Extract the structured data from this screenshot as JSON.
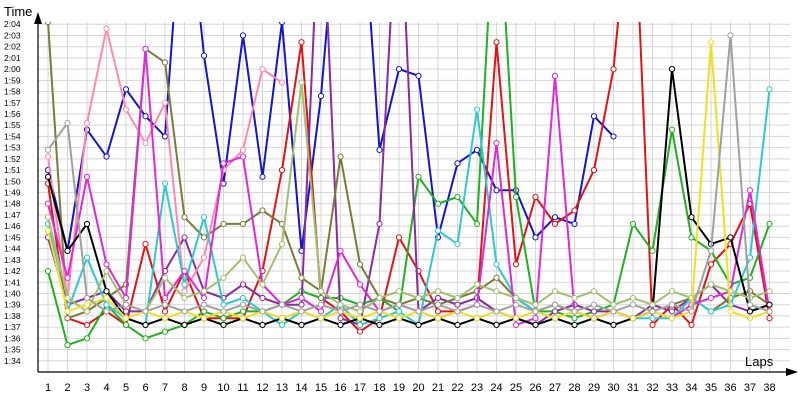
{
  "chart_data": {
    "type": "line",
    "ylabel": "Time",
    "xlabel": "Laps",
    "x": [
      1,
      2,
      3,
      4,
      5,
      6,
      7,
      8,
      9,
      10,
      11,
      12,
      13,
      14,
      15,
      16,
      17,
      18,
      19,
      20,
      21,
      22,
      23,
      24,
      25,
      26,
      27,
      28,
      29,
      30,
      31,
      32,
      33,
      34,
      35,
      36,
      37,
      38
    ],
    "ylim": [
      1.55,
      2.07
    ],
    "y_ticks": [
      {
        "v": 1.5667,
        "label": "1:34"
      },
      {
        "v": 1.5833,
        "label": "1:35"
      },
      {
        "v": 1.6,
        "label": "1:36"
      },
      {
        "v": 1.6167,
        "label": "1:37"
      },
      {
        "v": 1.6333,
        "label": "1:38"
      },
      {
        "v": 1.65,
        "label": "1:39"
      },
      {
        "v": 1.6667,
        "label": "1:40"
      },
      {
        "v": 1.6833,
        "label": "1:41"
      },
      {
        "v": 1.7,
        "label": "1:42"
      },
      {
        "v": 1.7167,
        "label": "1:43"
      },
      {
        "v": 1.7333,
        "label": "1:44"
      },
      {
        "v": 1.75,
        "label": "1:45"
      },
      {
        "v": 1.7667,
        "label": "1:46"
      },
      {
        "v": 1.7833,
        "label": "1:47"
      },
      {
        "v": 1.8,
        "label": "1:48"
      },
      {
        "v": 1.8167,
        "label": "1:49"
      },
      {
        "v": 1.8333,
        "label": "1:50"
      },
      {
        "v": 1.85,
        "label": "1:51"
      },
      {
        "v": 1.8667,
        "label": "1:52"
      },
      {
        "v": 1.8833,
        "label": "1:53"
      },
      {
        "v": 1.9,
        "label": "1:54"
      },
      {
        "v": 1.9167,
        "label": "1:55"
      },
      {
        "v": 1.9333,
        "label": "1:56"
      },
      {
        "v": 1.95,
        "label": "1:57"
      },
      {
        "v": 1.9667,
        "label": "1:58"
      },
      {
        "v": 1.9833,
        "label": "1:59"
      },
      {
        "v": 2.0,
        "label": "2:00"
      },
      {
        "v": 2.0167,
        "label": "2:01"
      },
      {
        "v": 2.0333,
        "label": "2:02"
      },
      {
        "v": 2.05,
        "label": "2:03"
      },
      {
        "v": 2.0667,
        "label": "2:04"
      }
    ],
    "grid": true,
    "series": [
      {
        "color": "#1414c8",
        "values": [
          1.85,
          1.73,
          1.91,
          1.87,
          1.97,
          1.93,
          1.9,
          2.3,
          2.02,
          1.83,
          2.05,
          1.84,
          2.07,
          1.73,
          1.96,
          2.3,
          2.3,
          1.88,
          2.0,
          1.99,
          1.75,
          1.86,
          1.88,
          1.82,
          1.82,
          1.75,
          1.78,
          1.77,
          1.93,
          1.9,
          null,
          null,
          null,
          null,
          null,
          null,
          null,
          null
        ]
      },
      {
        "color": "#e01414",
        "values": [
          1.83,
          1.63,
          1.62,
          1.64,
          1.62,
          1.74,
          1.64,
          1.7,
          1.63,
          1.63,
          1.63,
          1.7,
          1.85,
          2.04,
          1.66,
          1.64,
          1.61,
          1.63,
          1.75,
          1.7,
          1.64,
          1.64,
          1.65,
          2.04,
          1.71,
          1.81,
          1.77,
          1.79,
          1.85,
          2.0,
          2.3,
          1.62,
          1.65,
          1.62,
          1.71,
          1.74,
          1.8,
          1.63
        ]
      },
      {
        "color": "#20b020",
        "values": [
          1.7,
          1.59,
          1.6,
          1.65,
          1.62,
          1.6,
          1.61,
          1.62,
          1.64,
          1.63,
          1.64,
          1.64,
          1.65,
          1.67,
          1.66,
          1.66,
          1.65,
          1.66,
          1.64,
          1.84,
          1.8,
          1.81,
          1.77,
          2.3,
          1.81,
          1.64,
          1.64,
          1.63,
          1.64,
          1.65,
          1.77,
          1.73,
          1.91,
          1.75,
          1.73,
          1.68,
          1.69,
          1.77
        ]
      },
      {
        "color": "#8c2aa0",
        "values": [
          1.75,
          1.65,
          1.66,
          1.67,
          1.64,
          1.64,
          1.7,
          1.75,
          1.67,
          1.66,
          1.68,
          1.66,
          1.65,
          1.65,
          2.3,
          1.63,
          1.62,
          1.77,
          2.3,
          1.64,
          1.66,
          1.65,
          1.66,
          1.64,
          1.63,
          1.62,
          1.64,
          1.65,
          1.64,
          1.64,
          1.63,
          1.65,
          1.64,
          1.66,
          1.68,
          1.65,
          1.64,
          1.65
        ]
      },
      {
        "color": "#7a7a3a",
        "values": [
          2.07,
          1.63,
          1.64,
          1.66,
          1.68,
          2.03,
          2.01,
          1.78,
          1.75,
          1.77,
          1.77,
          1.79,
          1.77,
          1.69,
          1.67,
          1.87,
          1.71,
          1.66,
          1.65,
          1.66,
          1.65,
          1.66,
          1.67,
          1.69,
          1.66,
          1.64,
          1.65,
          1.64,
          1.63,
          1.64,
          1.63,
          1.64,
          1.65,
          1.66,
          1.64,
          1.66,
          1.67,
          1.65
        ]
      },
      {
        "color": "#ff88b0",
        "values": [
          1.87,
          1.66,
          1.92,
          2.06,
          1.94,
          1.89,
          1.95,
          1.67,
          1.72,
          1.85,
          1.88,
          2.0,
          1.98,
          null,
          null,
          null,
          null,
          null,
          null,
          null,
          null,
          null,
          null,
          null,
          null,
          null,
          null,
          null,
          null,
          null,
          null,
          null,
          null,
          null,
          null,
          null,
          null,
          null
        ]
      },
      {
        "color": "#30c8d0",
        "values": [
          1.77,
          1.64,
          1.72,
          1.65,
          1.63,
          1.62,
          1.83,
          1.68,
          1.78,
          1.65,
          1.66,
          1.64,
          1.62,
          1.64,
          1.63,
          1.65,
          1.62,
          1.63,
          1.64,
          1.62,
          1.76,
          1.74,
          1.94,
          1.71,
          1.66,
          1.64,
          1.63,
          1.62,
          1.63,
          1.64,
          1.63,
          1.63,
          1.63,
          1.66,
          1.64,
          1.65,
          1.72,
          1.97
        ]
      },
      {
        "color": "#dc2ad8",
        "values": [
          1.8,
          1.69,
          1.84,
          1.71,
          1.66,
          2.03,
          1.66,
          1.7,
          1.66,
          1.86,
          1.87,
          1.68,
          1.65,
          1.66,
          1.64,
          1.73,
          1.68,
          1.64,
          1.65,
          1.64,
          1.63,
          1.64,
          1.65,
          1.89,
          1.62,
          1.63,
          1.99,
          1.64,
          1.63,
          1.64,
          1.63,
          1.64,
          1.63,
          1.65,
          1.66,
          1.67,
          1.82,
          1.64
        ]
      },
      {
        "color": "#000000",
        "values": [
          1.84,
          1.73,
          1.77,
          1.67,
          1.63,
          1.62,
          1.63,
          1.62,
          1.63,
          1.62,
          1.63,
          1.62,
          1.63,
          1.62,
          1.63,
          1.62,
          1.63,
          1.62,
          1.63,
          1.62,
          1.63,
          1.62,
          1.63,
          1.62,
          1.63,
          1.62,
          1.63,
          1.62,
          1.63,
          1.62,
          1.63,
          1.64,
          2.0,
          1.78,
          1.74,
          1.75,
          1.64,
          1.65
        ]
      },
      {
        "color": "#a0c070",
        "values": [
          1.78,
          1.66,
          1.64,
          1.7,
          1.65,
          1.64,
          1.69,
          1.66,
          1.67,
          1.69,
          1.72,
          1.68,
          1.74,
          1.98,
          1.67,
          1.65,
          1.64,
          1.66,
          1.67,
          1.66,
          1.67,
          1.66,
          1.68,
          1.67,
          1.66,
          1.65,
          1.67,
          1.66,
          1.67,
          1.65,
          1.66,
          1.65,
          1.67,
          1.66,
          1.68,
          1.67,
          1.66,
          1.67
        ]
      },
      {
        "color": "#f0e020",
        "values": [
          1.76,
          1.64,
          1.65,
          1.66,
          1.63,
          1.64,
          1.63,
          1.64,
          1.63,
          1.64,
          1.63,
          1.64,
          1.63,
          1.64,
          1.63,
          1.64,
          1.63,
          1.64,
          1.63,
          1.64,
          1.63,
          1.64,
          1.63,
          1.64,
          1.63,
          1.64,
          1.63,
          1.64,
          1.63,
          1.64,
          1.63,
          1.64,
          1.63,
          1.64,
          2.04,
          1.64,
          1.63,
          1.64
        ]
      },
      {
        "color": "#a0a0a0",
        "values": [
          1.88,
          1.92,
          1.66,
          1.64,
          1.65,
          1.64,
          1.65,
          1.64,
          1.65,
          1.64,
          1.65,
          1.64,
          1.65,
          1.64,
          1.65,
          1.64,
          1.65,
          1.64,
          1.65,
          1.64,
          1.65,
          1.64,
          1.65,
          1.64,
          1.65,
          1.64,
          1.65,
          1.64,
          1.65,
          1.64,
          1.65,
          1.64,
          1.65,
          1.64,
          1.73,
          2.05,
          1.65,
          1.64
        ]
      }
    ]
  }
}
